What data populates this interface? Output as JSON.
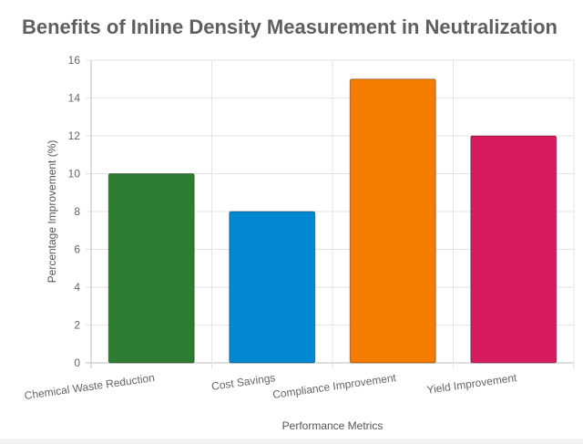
{
  "chart_data": {
    "type": "bar",
    "title": "Benefits of Inline Density Measurement in Neutralization",
    "xlabel": "Performance Metrics",
    "ylabel": "Percentage Improvement (%)",
    "categories": [
      "Chemical Waste Reduction",
      "Cost Savings",
      "Compliance Improvement",
      "Yield Improvement"
    ],
    "values": [
      10,
      8,
      15,
      12
    ],
    "colors": [
      "#2e7d32",
      "#0288d1",
      "#f57c00",
      "#d81b60"
    ],
    "ylim": [
      0,
      16
    ],
    "yticks": [
      0,
      2,
      4,
      6,
      8,
      10,
      12,
      14,
      16
    ],
    "grid": true,
    "legend": "none"
  }
}
